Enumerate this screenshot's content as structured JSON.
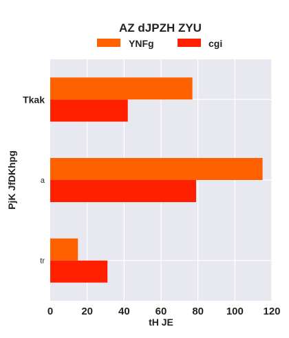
{
  "chart_data": {
    "type": "bar",
    "orientation": "horizontal",
    "title": "AZ dJPZH ZYU",
    "xlabel": "tH JE",
    "ylabel": "PjK JfDKhpg",
    "categories": [
      "Tkak",
      "a",
      "tr"
    ],
    "series": [
      {
        "name": "YNFg",
        "values": [
          77,
          115,
          15
        ],
        "color": "#ff6000"
      },
      {
        "name": "cgi",
        "values": [
          42,
          79,
          31
        ],
        "color": "#ff2000"
      }
    ],
    "xlim": [
      0,
      120
    ],
    "xticks": [
      0,
      20,
      40,
      60,
      80,
      100,
      120
    ],
    "grid": true,
    "legend": "top-center",
    "background": "#e8e8f0"
  }
}
